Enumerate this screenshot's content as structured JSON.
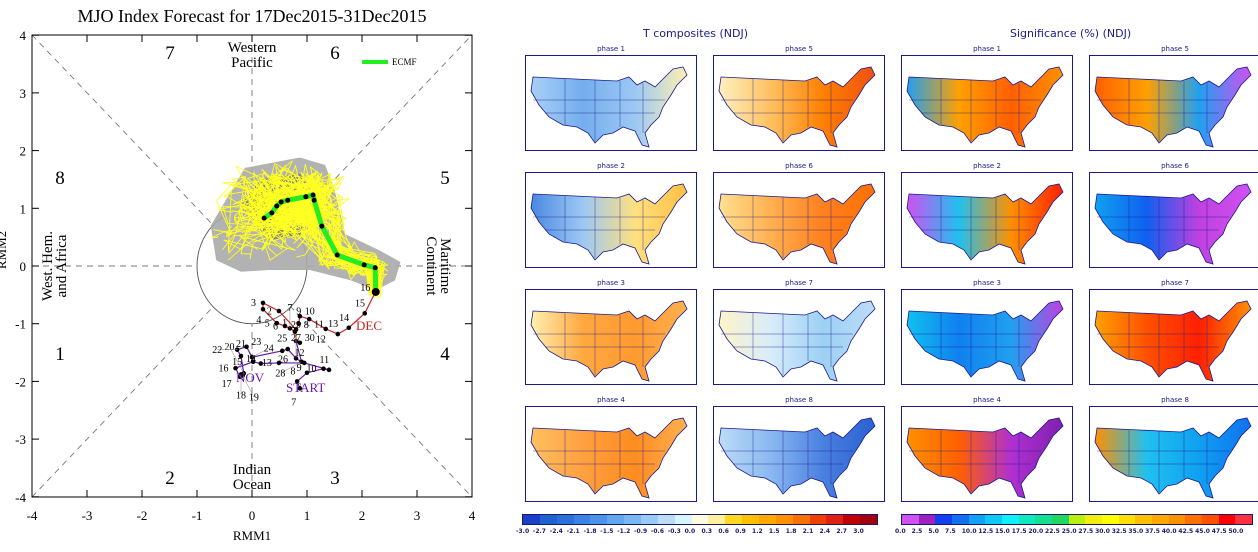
{
  "chart_data": {
    "type": "scatter",
    "title": "MJO Index Forecast for 17Dec2015-31Dec2015",
    "xlabel": "RMM1",
    "ylabel": "RMM2",
    "xlim": [
      -4,
      4
    ],
    "ylim": [
      -4,
      4
    ],
    "xticks": [
      "-4",
      "-3",
      "-2",
      "-1",
      "0",
      "1",
      "2",
      "3",
      "4"
    ],
    "yticks": [
      "4",
      "3",
      "2",
      "1",
      "0",
      "-1",
      "-2",
      "-3",
      "-4"
    ],
    "phases": [
      "1",
      "2",
      "3",
      "4",
      "5",
      "6",
      "7",
      "8"
    ],
    "regions": {
      "western_pacific": [
        "Western",
        "Pacific"
      ],
      "indian_ocean": [
        "Indian",
        "Ocean"
      ],
      "west_hem": [
        "West. Hem.",
        "and Africa"
      ],
      "maritime": [
        "Maritime",
        "Continent"
      ]
    },
    "legend": {
      "label": "ECMF",
      "color": "#22ee22",
      "placement": "top-right"
    },
    "annotations": {
      "start": "START",
      "nov": "NOV",
      "dec": "DEC"
    },
    "observed_nov": {
      "color": "#6a1aaa",
      "points": [
        {
          "day": "7",
          "x": 0.87,
          "y": -2.12
        },
        {
          "day": "8",
          "x": 0.82,
          "y": -2.0
        },
        {
          "day": "9",
          "x": 1.0,
          "y": -1.85
        },
        {
          "day": "10",
          "x": 1.3,
          "y": -1.78
        },
        {
          "day": "11",
          "x": 1.4,
          "y": -1.8
        },
        {
          "day": "12",
          "x": 0.95,
          "y": -1.68
        },
        {
          "day": "13",
          "x": 0.49,
          "y": -1.68
        },
        {
          "day": "14",
          "x": 0.16,
          "y": -1.69
        },
        {
          "day": "15",
          "x": 0.02,
          "y": -1.66
        },
        {
          "day": "16",
          "x": -0.3,
          "y": -1.77
        },
        {
          "day": "17",
          "x": -0.22,
          "y": -1.92
        },
        {
          "day": "18",
          "x": -0.2,
          "y": -1.88
        },
        {
          "day": "19",
          "x": -0.17,
          "y": -1.9
        },
        {
          "day": "20",
          "x": -0.15,
          "y": -1.86
        },
        {
          "day": "21",
          "x": -0.2,
          "y": -1.56
        },
        {
          "day": "22",
          "x": -0.27,
          "y": -1.45
        },
        {
          "day": "23",
          "x": -0.1,
          "y": -1.4
        },
        {
          "day": "24",
          "x": 0.0,
          "y": -1.58
        },
        {
          "day": "25",
          "x": 0.55,
          "y": -1.47
        },
        {
          "day": "26",
          "x": 0.65,
          "y": -1.44
        },
        {
          "day": "27",
          "x": 0.8,
          "y": -1.6
        },
        {
          "day": "28",
          "x": 0.9,
          "y": -1.66
        },
        {
          "day": "29",
          "x": 0.8,
          "y": -1.3
        },
        {
          "day": "30",
          "x": 0.87,
          "y": -1.33
        }
      ]
    },
    "observed_dec": {
      "color": "#cc2222",
      "points": [
        {
          "day": "1",
          "x": 0.8,
          "y": -1.1
        },
        {
          "day": "2",
          "x": 0.49,
          "y": -0.78
        },
        {
          "day": "3",
          "x": 0.2,
          "y": -0.64
        },
        {
          "day": "4",
          "x": 0.2,
          "y": -0.75
        },
        {
          "day": "5",
          "x": 0.45,
          "y": -0.99
        },
        {
          "day": "6",
          "x": 0.6,
          "y": -1.04
        },
        {
          "day": "7",
          "x": 0.69,
          "y": -1.08
        },
        {
          "day": "8",
          "x": 0.78,
          "y": -1.14
        },
        {
          "day": "9",
          "x": 0.85,
          "y": -1.0
        },
        {
          "day": "10",
          "x": 0.87,
          "y": -0.87
        },
        {
          "day": "11",
          "x": 1.04,
          "y": -0.92
        },
        {
          "day": "12",
          "x": 1.34,
          "y": -1.09
        },
        {
          "day": "13",
          "x": 1.56,
          "y": -1.18
        },
        {
          "day": "14",
          "x": 1.76,
          "y": -1.07
        },
        {
          "day": "15",
          "x": 2.05,
          "y": -0.82
        },
        {
          "day": "16",
          "x": 2.24,
          "y": -0.46
        }
      ]
    },
    "forecast_ecmf": {
      "color": "#22ee22",
      "points": [
        {
          "x": 2.25,
          "y": -0.45
        },
        {
          "x": 2.24,
          "y": -0.03
        },
        {
          "x": 2.04,
          "y": 0.02
        },
        {
          "x": 1.55,
          "y": 0.19
        },
        {
          "x": 1.27,
          "y": 0.69
        },
        {
          "x": 1.13,
          "y": 1.14
        },
        {
          "x": 1.11,
          "y": 1.23
        },
        {
          "x": 0.98,
          "y": 1.2
        },
        {
          "x": 0.65,
          "y": 1.14
        },
        {
          "x": 0.53,
          "y": 1.11
        },
        {
          "x": 0.45,
          "y": 1.04
        },
        {
          "x": 0.36,
          "y": 0.92
        },
        {
          "x": 0.22,
          "y": 0.83
        }
      ]
    },
    "spread_outer": [
      [
        -0.75,
        0.7
      ],
      [
        -0.13,
        1.7
      ],
      [
        0.87,
        1.88
      ],
      [
        1.33,
        1.75
      ],
      [
        1.5,
        1.32
      ],
      [
        1.7,
        0.55
      ],
      [
        2.3,
        0.28
      ],
      [
        2.7,
        0.07
      ],
      [
        2.6,
        -0.25
      ],
      [
        2.25,
        -0.42
      ],
      [
        1.8,
        -0.25
      ],
      [
        1.05,
        -0.07
      ],
      [
        0.3,
        -0.07
      ],
      [
        -0.2,
        -0.1
      ],
      [
        -0.65,
        0.1
      ]
    ],
    "spread_inner": [
      [
        -0.2,
        1.05
      ],
      [
        0.15,
        1.5
      ],
      [
        0.87,
        1.6
      ],
      [
        1.2,
        1.05
      ],
      [
        0.87,
        0.53
      ],
      [
        0.3,
        0.45
      ]
    ]
  },
  "right_panel": {
    "t_header": "T composites (NDJ)",
    "sig_header": "Significance (%) (NDJ)",
    "t_maps": [
      {
        "label": "phase 1",
        "colors": [
          "#a8d0f6",
          "#74aeee",
          "#9cc8f4",
          "#fff0b0"
        ]
      },
      {
        "label": "phase 2",
        "colors": [
          "#4a88e0",
          "#9cc8f4",
          "#ffe080",
          "#ffc040"
        ]
      },
      {
        "label": "phase 3",
        "colors": [
          "#fff0b0",
          "#ffa840",
          "#ff9a30",
          "#ffb050"
        ]
      },
      {
        "label": "phase 4",
        "colors": [
          "#ffc060",
          "#ffa040",
          "#ff8c20",
          "#ffb050"
        ]
      },
      {
        "label": "phase 5",
        "colors": [
          "#fff0c0",
          "#ffc060",
          "#ff8000",
          "#f05010"
        ]
      },
      {
        "label": "phase 6",
        "colors": [
          "#ffe090",
          "#ffb050",
          "#ff8020",
          "#ff7000"
        ]
      },
      {
        "label": "phase 7",
        "colors": [
          "#fff4c8",
          "#d8ecfa",
          "#9cd0f4",
          "#bcdcf8"
        ]
      },
      {
        "label": "phase 8",
        "colors": [
          "#bcdcf8",
          "#8ab8f0",
          "#4a80e0",
          "#2a60d0"
        ]
      }
    ],
    "sig_maps": [
      {
        "label": "phase 1",
        "colors": [
          "#20a0f0",
          "#ffa000",
          "#ff6000",
          "#ff9000"
        ]
      },
      {
        "label": "phase 2",
        "colors": [
          "#d050f0",
          "#20c0f0",
          "#ff9000",
          "#ff2000"
        ]
      },
      {
        "label": "phase 3",
        "colors": [
          "#10c0f0",
          "#1080f0",
          "#20a0f0",
          "#c040e0"
        ]
      },
      {
        "label": "phase 4",
        "colors": [
          "#ff9000",
          "#ff6000",
          "#b030d0",
          "#8020b0"
        ]
      },
      {
        "label": "phase 5",
        "colors": [
          "#ff6000",
          "#ffa000",
          "#20a0f0",
          "#d050f0"
        ]
      },
      {
        "label": "phase 6",
        "colors": [
          "#10a0f0",
          "#1060f0",
          "#c040e0",
          "#d050f0"
        ]
      },
      {
        "label": "phase 7",
        "colors": [
          "#ffa000",
          "#ff5000",
          "#ff2000",
          "#ff9000"
        ]
      },
      {
        "label": "phase 8",
        "colors": [
          "#ff9000",
          "#20c0f0",
          "#10a0f0",
          "#1070f0"
        ]
      }
    ],
    "t_colorbar": {
      "labels": [
        "-3.0",
        "-2.7",
        "-2.4",
        "-2.1",
        "-1.8",
        "-1.5",
        "-1.2",
        "-0.9",
        "-0.6",
        "-0.3",
        "0.0",
        "0.3",
        "0.6",
        "0.9",
        "1.2",
        "1.5",
        "1.8",
        "2.1",
        "2.4",
        "2.7",
        "3.0"
      ],
      "colors": [
        "#1a3fc8",
        "#2060d0",
        "#2a70d8",
        "#3a82e6",
        "#4a92ea",
        "#62a6ee",
        "#7ab6f2",
        "#9ccaf6",
        "#bcdcf8",
        "#d8f4fc",
        "#fffbe0",
        "#fff0a0",
        "#ffd820",
        "#ffc000",
        "#ffa800",
        "#ff9000",
        "#f87000",
        "#f04000",
        "#e02010",
        "#c00000",
        "#a00010"
      ]
    },
    "sig_colorbar": {
      "labels": [
        "0.0",
        "2.5",
        "5.0",
        "7.5",
        "10.0",
        "12.5",
        "15.0",
        "17.5",
        "20.0",
        "22.5",
        "25.0",
        "27.5",
        "30.0",
        "32.5",
        "35.0",
        "37.5",
        "40.0",
        "42.5",
        "45.0",
        "47.5",
        "50.0"
      ],
      "colors": [
        "#d050f0",
        "#a020c0",
        "#1040f0",
        "#1070f0",
        "#10a0f8",
        "#10c8f8",
        "#10f0f8",
        "#10e8c0",
        "#10e090",
        "#20d860",
        "#b8f010",
        "#f0f010",
        "#ffff00",
        "#ffe000",
        "#ffc000",
        "#ffa800",
        "#ff9000",
        "#ff7000",
        "#ff5000",
        "#ff0000",
        "#ff3040"
      ]
    }
  }
}
